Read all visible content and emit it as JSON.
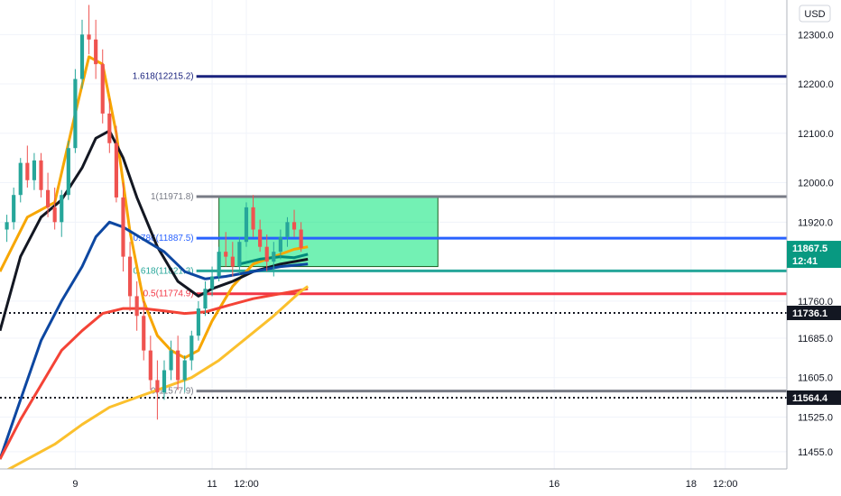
{
  "currency": "USD",
  "price_axis": {
    "ticks": [
      {
        "value": 12300,
        "label": "12300.0"
      },
      {
        "value": 12200,
        "label": "12200.0"
      },
      {
        "value": 12100,
        "label": "12100.0"
      },
      {
        "value": 12000,
        "label": "12000.0"
      },
      {
        "value": 11920,
        "label": "11920.0"
      },
      {
        "value": 11760,
        "label": "11760.0"
      },
      {
        "value": 11685,
        "label": "11685.0"
      },
      {
        "value": 11605,
        "label": "11605.0"
      },
      {
        "value": 11525,
        "label": "11525.0"
      },
      {
        "value": 11455,
        "label": "11455.0"
      }
    ]
  },
  "time_axis": {
    "ticks": [
      {
        "value": 9,
        "label": "9"
      },
      {
        "value": 11,
        "label": "11"
      },
      {
        "value": 11.5,
        "label": "12:00"
      },
      {
        "value": 16,
        "label": "16"
      },
      {
        "value": 18,
        "label": "18"
      },
      {
        "value": 18.5,
        "label": "12:00"
      }
    ]
  },
  "price_badges": [
    {
      "value": 11867.5,
      "label": "11867.5",
      "sub": "12:41",
      "color": "#089981"
    },
    {
      "value": 11736.1,
      "label": "11736.1",
      "color": "#131722"
    },
    {
      "value": 11564.4,
      "label": "11564.4",
      "color": "#131722"
    }
  ],
  "fib_levels": [
    {
      "label": "1.618(12215.2)",
      "value": 12215.2,
      "color": "#1a237e"
    },
    {
      "label": "1(11971.8)",
      "value": 11971.8,
      "color": "#787b86"
    },
    {
      "label": "0.786(11887.5)",
      "value": 11887.5,
      "color": "#2962ff"
    },
    {
      "label": "0.618(11821.3)",
      "value": 11821.3,
      "color": "#26a69a"
    },
    {
      "label": "0.5(11774.9)",
      "value": 11774.9,
      "color": "#f23645"
    },
    {
      "label": "0(11577.9)",
      "value": 11577.9,
      "color": "#787b86"
    }
  ],
  "horizontal_levels": [
    {
      "value": 11736.1,
      "style": "dotted",
      "color": "#131722"
    },
    {
      "value": 11564.4,
      "style": "dotted",
      "color": "#131722"
    }
  ],
  "chart_data": {
    "type": "line",
    "title": "",
    "symbol_currency": "USD",
    "ylim": [
      11420,
      12370
    ],
    "xlim": [
      7.9,
      19.4
    ],
    "last_price": 11867.5,
    "countdown": "12:41",
    "consolidation_box": {
      "x0": 11.1,
      "x1": 14.3,
      "y0": 11830,
      "y1": 11971.8,
      "color": "#00e676"
    },
    "candles": [
      [
        8.0,
        11905,
        11935,
        11880,
        11920
      ],
      [
        8.1,
        11920,
        11990,
        11905,
        11975
      ],
      [
        8.2,
        11975,
        12050,
        11960,
        12040
      ],
      [
        8.3,
        12040,
        12075,
        11990,
        12005
      ],
      [
        8.4,
        12005,
        12060,
        11985,
        12045
      ],
      [
        8.5,
        12045,
        12060,
        11970,
        11985
      ],
      [
        8.6,
        11985,
        12020,
        11930,
        11950
      ],
      [
        8.7,
        11950,
        11990,
        11905,
        11920
      ],
      [
        8.8,
        11920,
        11985,
        11890,
        11975
      ],
      [
        8.9,
        11975,
        12085,
        11965,
        12070
      ],
      [
        9.0,
        12070,
        12230,
        12060,
        12210
      ],
      [
        9.1,
        12210,
        12330,
        12190,
        12300
      ],
      [
        9.2,
        12300,
        12360,
        12260,
        12290
      ],
      [
        9.3,
        12290,
        12330,
        12210,
        12240
      ],
      [
        9.4,
        12240,
        12270,
        12120,
        12140
      ],
      [
        9.5,
        12140,
        12170,
        12060,
        12080
      ],
      [
        9.6,
        12080,
        12115,
        11960,
        11970
      ],
      [
        9.7,
        11970,
        12000,
        11820,
        11850
      ],
      [
        9.8,
        11850,
        11880,
        11740,
        11770
      ],
      [
        9.9,
        11770,
        11800,
        11700,
        11730
      ],
      [
        10.0,
        11730,
        11760,
        11640,
        11660
      ],
      [
        10.1,
        11660,
        11690,
        11580,
        11600
      ],
      [
        10.2,
        11600,
        11640,
        11520,
        11575
      ],
      [
        10.3,
        11575,
        11640,
        11560,
        11620
      ],
      [
        10.4,
        11620,
        11680,
        11600,
        11660
      ],
      [
        10.5,
        11660,
        11690,
        11580,
        11600
      ],
      [
        10.6,
        11600,
        11650,
        11575,
        11640
      ],
      [
        10.7,
        11640,
        11700,
        11620,
        11690
      ],
      [
        10.8,
        11690,
        11760,
        11680,
        11745
      ],
      [
        10.9,
        11745,
        11800,
        11730,
        11785
      ],
      [
        11.0,
        11785,
        11830,
        11770,
        11810
      ],
      [
        11.1,
        11810,
        11870,
        11800,
        11860
      ],
      [
        11.2,
        11860,
        11900,
        11830,
        11850
      ],
      [
        11.3,
        11850,
        11880,
        11810,
        11830
      ],
      [
        11.4,
        11830,
        11890,
        11815,
        11880
      ],
      [
        11.5,
        11880,
        11960,
        11870,
        11950
      ],
      [
        11.6,
        11950,
        11975,
        11890,
        11905
      ],
      [
        11.7,
        11905,
        11925,
        11860,
        11870
      ],
      [
        11.8,
        11870,
        11895,
        11820,
        11840
      ],
      [
        11.9,
        11840,
        11880,
        11810,
        11860
      ],
      [
        12.0,
        11860,
        11905,
        11845,
        11890
      ],
      [
        12.1,
        11890,
        11930,
        11870,
        11920
      ],
      [
        12.2,
        11920,
        11945,
        11890,
        11905
      ],
      [
        12.3,
        11905,
        11920,
        11860,
        11867.5
      ]
    ],
    "series": [
      {
        "name": "",
        "color": "#f7a600",
        "values": [
          [
            7.9,
            11820
          ],
          [
            8.3,
            11930
          ],
          [
            8.7,
            11960
          ],
          [
            9.0,
            12140
          ],
          [
            9.2,
            12255
          ],
          [
            9.4,
            12240
          ],
          [
            9.6,
            12100
          ],
          [
            9.8,
            11900
          ],
          [
            10.0,
            11760
          ],
          [
            10.2,
            11690
          ],
          [
            10.4,
            11660
          ],
          [
            10.6,
            11645
          ],
          [
            10.8,
            11660
          ],
          [
            11.0,
            11720
          ],
          [
            11.3,
            11790
          ],
          [
            11.6,
            11835
          ],
          [
            11.9,
            11850
          ],
          [
            12.2,
            11865
          ],
          [
            12.4,
            11870
          ]
        ]
      },
      {
        "name": "",
        "color": "#131722",
        "values": [
          [
            7.9,
            11700
          ],
          [
            8.2,
            11850
          ],
          [
            8.5,
            11930
          ],
          [
            8.8,
            11965
          ],
          [
            9.1,
            12030
          ],
          [
            9.3,
            12090
          ],
          [
            9.5,
            12105
          ],
          [
            9.7,
            12050
          ],
          [
            9.9,
            11970
          ],
          [
            10.2,
            11870
          ],
          [
            10.5,
            11800
          ],
          [
            10.8,
            11770
          ],
          [
            11.0,
            11785
          ],
          [
            11.3,
            11800
          ],
          [
            11.6,
            11820
          ],
          [
            12.0,
            11835
          ],
          [
            12.4,
            11845
          ]
        ]
      },
      {
        "name": "",
        "color": "#0d47a1",
        "values": [
          [
            7.9,
            11440
          ],
          [
            8.2,
            11560
          ],
          [
            8.5,
            11680
          ],
          [
            8.8,
            11760
          ],
          [
            9.1,
            11830
          ],
          [
            9.3,
            11890
          ],
          [
            9.5,
            11920
          ],
          [
            9.7,
            11910
          ],
          [
            10.0,
            11885
          ],
          [
            10.3,
            11860
          ],
          [
            10.6,
            11820
          ],
          [
            10.9,
            11805
          ],
          [
            11.2,
            11810
          ],
          [
            11.6,
            11820
          ],
          [
            12.0,
            11830
          ],
          [
            12.4,
            11835
          ]
        ]
      },
      {
        "name": "",
        "color": "#f44336",
        "values": [
          [
            7.9,
            11440
          ],
          [
            8.2,
            11520
          ],
          [
            8.5,
            11590
          ],
          [
            8.8,
            11660
          ],
          [
            9.1,
            11700
          ],
          [
            9.4,
            11735
          ],
          [
            9.7,
            11745
          ],
          [
            10.0,
            11745
          ],
          [
            10.3,
            11740
          ],
          [
            10.6,
            11735
          ],
          [
            10.9,
            11738
          ],
          [
            11.2,
            11750
          ],
          [
            11.6,
            11765
          ],
          [
            12.0,
            11775
          ],
          [
            12.4,
            11785
          ]
        ]
      },
      {
        "name": "",
        "color": "#fbc02d",
        "values": [
          [
            7.9,
            11410
          ],
          [
            8.3,
            11440
          ],
          [
            8.7,
            11470
          ],
          [
            9.1,
            11510
          ],
          [
            9.5,
            11545
          ],
          [
            9.9,
            11565
          ],
          [
            10.3,
            11585
          ],
          [
            10.7,
            11605
          ],
          [
            11.1,
            11640
          ],
          [
            11.5,
            11685
          ],
          [
            11.9,
            11730
          ],
          [
            12.3,
            11780
          ],
          [
            12.4,
            11790
          ]
        ]
      },
      {
        "name": "",
        "color": "#00897b",
        "values": [
          [
            11.4,
            11835
          ],
          [
            11.7,
            11845
          ],
          [
            12.0,
            11850
          ],
          [
            12.2,
            11848
          ],
          [
            12.4,
            11855
          ]
        ]
      }
    ]
  }
}
